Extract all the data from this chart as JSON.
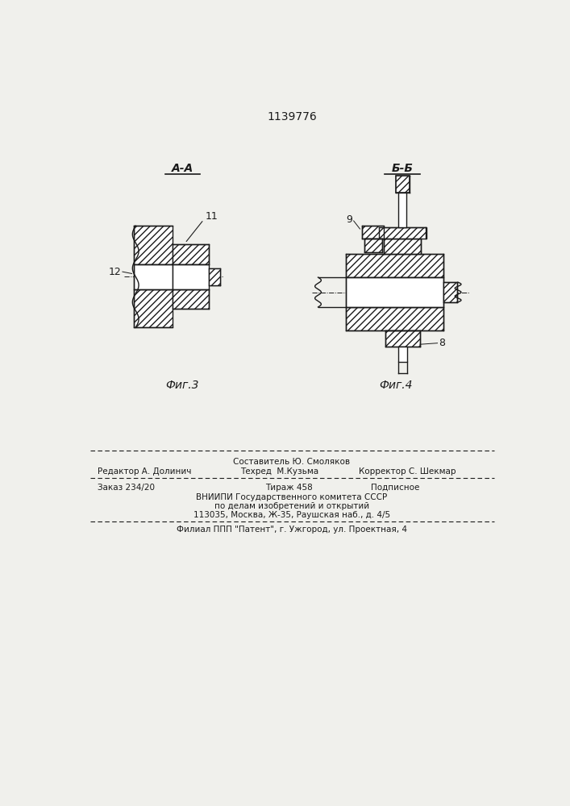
{
  "title": "1139776",
  "fig3_label": "Фиг.3",
  "fig4_label": "Фиг.4",
  "section_aa": "А-А",
  "section_bb": "Б-Б",
  "label_11": "11",
  "label_12": "12",
  "label_8": "8",
  "label_9": "9",
  "bg_color": "#f0f0ec",
  "line_color": "#1a1a1a",
  "footer_line1": "Составитель Ю. Смоляков",
  "footer_line2_left": "Редактор А. Долинич",
  "footer_line2_mid": "Техред  М.Кузьма",
  "footer_line2_right": "Корректор С. Шекмар",
  "footer_line3_left": "Заказ 234/20",
  "footer_line3_mid": "Тираж 458",
  "footer_line3_right": "Подписное",
  "footer_line4": "ВНИИПИ Государственного комитета СССР",
  "footer_line5": "по делам изобретений и открытий",
  "footer_line6": "113035, Москва, Ж-35, Раушская наб., д. 4/5",
  "footer_line7": "Филиал ППП \"Патент\", г. Ужгород, ул. Проектная, 4"
}
